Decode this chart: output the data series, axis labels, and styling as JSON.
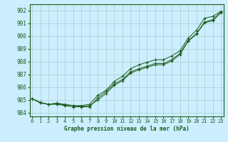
{
  "bg_color": "#cceeff",
  "grid_color": "#aacccc",
  "line_color": "#1a5c1a",
  "marker_color": "#1a5c1a",
  "xlim": [
    -0.3,
    23.3
  ],
  "ylim": [
    983.7,
    992.5
  ],
  "yticks": [
    984,
    985,
    986,
    987,
    988,
    989,
    990,
    991,
    992
  ],
  "xticks": [
    0,
    1,
    2,
    3,
    4,
    5,
    6,
    7,
    8,
    9,
    10,
    11,
    12,
    13,
    14,
    15,
    16,
    17,
    18,
    19,
    20,
    21,
    22,
    23
  ],
  "xlabel": "Graphe pression niveau de la mer (hPa)",
  "series1": [
    985.1,
    984.8,
    984.65,
    984.7,
    984.6,
    984.55,
    984.5,
    984.55,
    985.0,
    985.5,
    986.15,
    986.5,
    987.1,
    987.35,
    987.55,
    987.75,
    987.75,
    988.05,
    988.55,
    989.6,
    990.15,
    991.05,
    991.2,
    991.85
  ],
  "series2": [
    985.1,
    984.8,
    984.65,
    984.65,
    984.55,
    984.45,
    984.45,
    984.45,
    985.15,
    985.65,
    986.25,
    986.6,
    987.2,
    987.45,
    987.65,
    987.85,
    987.85,
    988.15,
    988.65,
    989.65,
    990.2,
    991.1,
    991.3,
    991.9
  ],
  "series3": [
    985.1,
    984.75,
    984.65,
    984.75,
    984.65,
    984.55,
    984.55,
    984.65,
    985.35,
    985.75,
    986.45,
    986.85,
    987.45,
    987.75,
    987.95,
    988.15,
    988.15,
    988.45,
    988.85,
    989.85,
    990.45,
    991.4,
    991.55,
    991.95
  ]
}
